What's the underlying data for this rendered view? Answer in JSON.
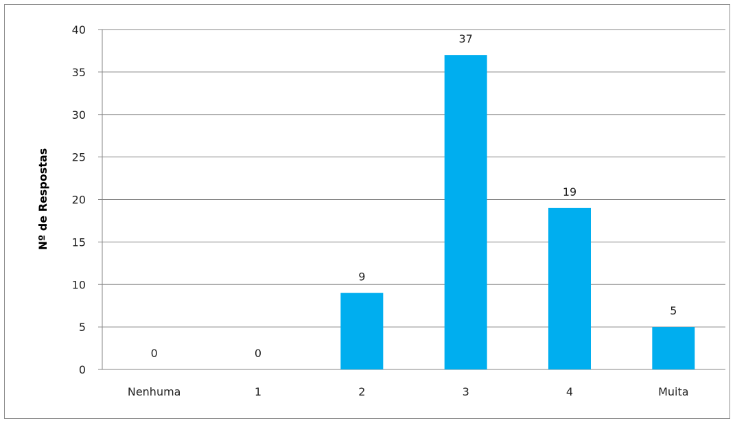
{
  "chart_data": {
    "type": "bar",
    "title": "",
    "xlabel": "",
    "ylabel": "Nº de Respostas",
    "categories": [
      "Nenhuma",
      "1",
      "2",
      "3",
      "4",
      "Muita"
    ],
    "values": [
      0,
      0,
      9,
      37,
      19,
      5
    ],
    "data_labels": [
      "0",
      "0",
      "9",
      "37",
      "19",
      "5"
    ],
    "yticks": [
      "0",
      "5",
      "10",
      "15",
      "20",
      "25",
      "30",
      "35",
      "40"
    ],
    "ylim": [
      0,
      40
    ],
    "grid": true,
    "legend": "none",
    "bar_color": "#00AEEF",
    "grid_color": "#868686"
  }
}
